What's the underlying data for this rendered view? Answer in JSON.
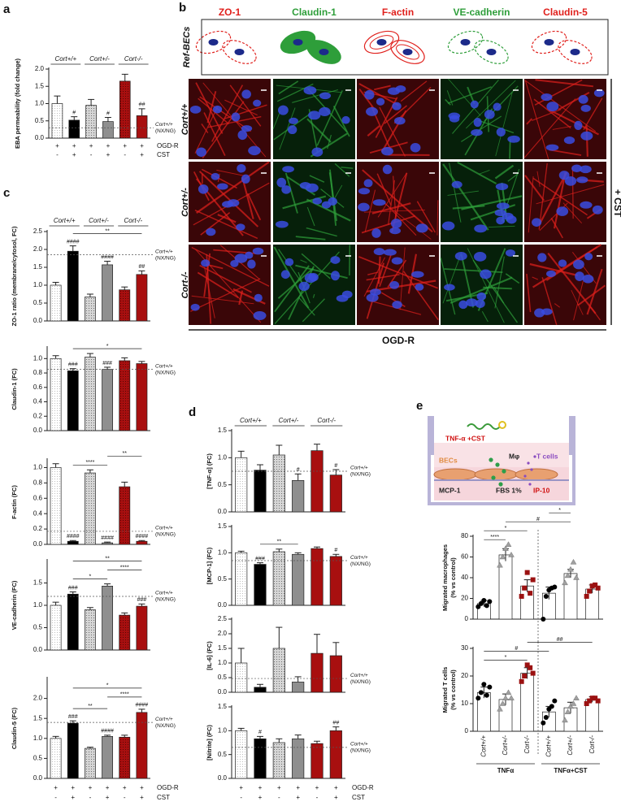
{
  "panel_labels": [
    "a",
    "b",
    "c",
    "d",
    "e"
  ],
  "micrographs": {
    "columns": [
      {
        "name": "ZO-1",
        "color": "#e0201c"
      },
      {
        "name": "Claudin-1",
        "color": "#2e9e3a"
      },
      {
        "name": "F-actin",
        "color": "#e0201c"
      },
      {
        "name": "VE-cadherin",
        "color": "#2e9e3a"
      },
      {
        "name": "Claudin-5",
        "color": "#e0201c"
      }
    ],
    "ref_row": "Ref-BECs",
    "rows": [
      "Cort+/+",
      "Cort+/-",
      "Cort-/-"
    ],
    "side_label": "+ CST",
    "bottom_label": "OGD-R"
  },
  "diagram": {
    "labels": [
      "TNF-α +CST",
      "BECs",
      "Mφ",
      "T cells",
      "MCP-1",
      "FBS 1%",
      "IP-10"
    ]
  },
  "chart_data": [
    {
      "type": "bar",
      "ylabel": "EBA permeability (fold change)",
      "values": [
        1.0,
        0.52,
        0.95,
        0.48,
        1.65,
        0.65
      ],
      "errors": [
        0.22,
        0.1,
        0.17,
        0.12,
        0.2,
        0.2
      ],
      "colors": [
        "#ffffff",
        "#000000",
        "#d6d6d6",
        "#8f8f8f",
        "#a80f0f",
        "#a80f0f"
      ],
      "dotted": [
        true,
        false,
        true,
        false,
        true,
        false
      ],
      "ylim": [
        0,
        2
      ],
      "yticks": [
        {
          "value": 0,
          "label": "0.0"
        },
        {
          "value": 0.5,
          "label": "0.5"
        },
        {
          "value": 1,
          "label": "1.0"
        },
        {
          "value": 1.5,
          "label": "1.5"
        },
        {
          "value": 2,
          "label": "2.0"
        }
      ],
      "ref": 0.3,
      "ref_label": [
        "Cort+/+",
        "(NX/NG)"
      ],
      "bar_labels": [
        null,
        "#",
        null,
        "#",
        null,
        "##"
      ],
      "brackets": [],
      "groups": [
        "Cort+/+",
        "Cort+/-",
        "Cort-/-"
      ],
      "row_labels": [
        "OGD-R",
        "CST"
      ],
      "rows": [
        [
          "+",
          "+",
          "+",
          "+",
          "+",
          "+"
        ],
        [
          "-",
          "+",
          "-",
          "+",
          "-",
          "+"
        ]
      ]
    },
    {
      "type": "bar",
      "ylabel": "ZO-1 ratio (membrane/cytosol, FC)",
      "values": [
        1.0,
        1.95,
        0.67,
        1.57,
        0.87,
        1.3
      ],
      "errors": [
        0.08,
        0.15,
        0.08,
        0.1,
        0.08,
        0.1
      ],
      "colors": [
        "#ffffff",
        "#000000",
        "#d6d6d6",
        "#8f8f8f",
        "#a80f0f",
        "#a80f0f"
      ],
      "dotted": [
        true,
        false,
        true,
        false,
        true,
        false
      ],
      "ylim": [
        0,
        2.5
      ],
      "yticks": [
        {
          "value": 0,
          "label": "0.0"
        },
        {
          "value": 0.5,
          "label": "0.5"
        },
        {
          "value": 1,
          "label": "1.0"
        },
        {
          "value": 1.5,
          "label": "1.5"
        },
        {
          "value": 2,
          "label": "2.0"
        },
        {
          "value": 2.5,
          "label": "2.5"
        }
      ],
      "ref": 1.85,
      "ref_label": [
        "Cort+/+",
        "(NX/NG)"
      ],
      "bar_labels": [
        null,
        "####",
        null,
        "####",
        null,
        "##"
      ],
      "brackets": [
        {
          "bars": [
            1,
            5
          ],
          "label": "**"
        }
      ],
      "groups": [
        "Cort+/+",
        "Cort+/-",
        "Cort-/-"
      ]
    },
    {
      "type": "bar",
      "ylabel": "Claudin-1 (FC)",
      "values": [
        1.0,
        0.83,
        1.02,
        0.85,
        0.97,
        0.93
      ],
      "errors": [
        0.04,
        0.03,
        0.05,
        0.03,
        0.04,
        0.03
      ],
      "colors": [
        "#ffffff",
        "#000000",
        "#d6d6d6",
        "#8f8f8f",
        "#a80f0f",
        "#a80f0f"
      ],
      "dotted": [
        true,
        false,
        true,
        false,
        true,
        false
      ],
      "ylim": [
        0,
        1.15
      ],
      "yticks": [
        {
          "value": 0,
          "label": "0.0"
        },
        {
          "value": 0.2,
          "label": "0.2"
        },
        {
          "value": 0.4,
          "label": "0.4"
        },
        {
          "value": 0.6,
          "label": "0.6"
        },
        {
          "value": 0.8,
          "label": "0.8"
        },
        {
          "value": 1,
          "label": "1.0"
        }
      ],
      "ref": 0.85,
      "ref_label": [
        "Cort+/+",
        "(NX/NG)"
      ],
      "bar_labels": [
        null,
        "###",
        null,
        "###",
        null,
        null
      ],
      "brackets": [
        {
          "bars": [
            1,
            5
          ],
          "label": "*"
        }
      ]
    },
    {
      "type": "bar",
      "ylabel": "F-actin (FC)",
      "values": [
        1.0,
        0.04,
        0.93,
        0.02,
        0.75,
        0.04
      ],
      "errors": [
        0.05,
        0.01,
        0.04,
        0.01,
        0.06,
        0.01
      ],
      "colors": [
        "#ffffff",
        "#000000",
        "#d6d6d6",
        "#8f8f8f",
        "#a80f0f",
        "#a80f0f"
      ],
      "dotted": [
        true,
        false,
        true,
        false,
        true,
        false
      ],
      "ylim": [
        0,
        1.1
      ],
      "yticks": [
        {
          "value": 0,
          "label": "0.0"
        },
        {
          "value": 0.2,
          "label": "0.2"
        },
        {
          "value": 0.4,
          "label": "0.4"
        },
        {
          "value": 0.6,
          "label": "0.6"
        },
        {
          "value": 0.8,
          "label": "0.8"
        },
        {
          "value": 1,
          "label": "1.0"
        }
      ],
      "ref": 0.17,
      "ref_label": [
        "Cort+/+",
        "(NX/NG)"
      ],
      "bar_labels": [
        null,
        "####",
        null,
        "####",
        null,
        "####"
      ],
      "brackets": [
        {
          "bars": [
            1,
            3
          ],
          "label": "****"
        },
        {
          "bars": [
            3,
            5
          ],
          "label": "**"
        }
      ]
    },
    {
      "type": "bar",
      "ylabel": "VE-cadherin (FC)",
      "values": [
        1.0,
        1.25,
        0.9,
        1.43,
        0.78,
        0.98
      ],
      "errors": [
        0.07,
        0.05,
        0.05,
        0.05,
        0.05,
        0.05
      ],
      "colors": [
        "#ffffff",
        "#000000",
        "#d6d6d6",
        "#8f8f8f",
        "#a80f0f",
        "#a80f0f"
      ],
      "dotted": [
        true,
        false,
        true,
        false,
        true,
        false
      ],
      "ylim": [
        0,
        2
      ],
      "yticks": [
        {
          "value": 0,
          "label": "0.0"
        },
        {
          "value": 0.5,
          "label": "0.5"
        },
        {
          "value": 1,
          "label": "1.0"
        },
        {
          "value": 1.5,
          "label": "1.5"
        }
      ],
      "ref": 1.2,
      "ref_label": [
        "Cort+/+",
        "(NX/NG)"
      ],
      "bar_labels": [
        null,
        "###",
        null,
        null,
        null,
        "###"
      ],
      "brackets": [
        {
          "bars": [
            1,
            3
          ],
          "label": "*"
        },
        {
          "bars": [
            3,
            5
          ],
          "label": "****"
        },
        {
          "bars": [
            1,
            5
          ],
          "label": "**"
        }
      ]
    },
    {
      "type": "bar",
      "ylabel": "Claudin-5 (FC)",
      "values": [
        1.0,
        1.38,
        0.75,
        1.05,
        1.03,
        1.65
      ],
      "errors": [
        0.05,
        0.06,
        0.03,
        0.03,
        0.05,
        0.08
      ],
      "colors": [
        "#ffffff",
        "#000000",
        "#d6d6d6",
        "#8f8f8f",
        "#a80f0f",
        "#a80f0f"
      ],
      "dotted": [
        true,
        false,
        true,
        false,
        true,
        false
      ],
      "ylim": [
        0,
        2.5
      ],
      "yticks": [
        {
          "value": 0,
          "label": "0.0"
        },
        {
          "value": 0.5,
          "label": "0.5"
        },
        {
          "value": 1,
          "label": "1.0"
        },
        {
          "value": 1.5,
          "label": "1.5"
        },
        {
          "value": 2,
          "label": "2.0"
        }
      ],
      "ref": 1.4,
      "ref_label": [
        "Cort+/+",
        "(NX/NG)"
      ],
      "bar_labels": [
        null,
        "###",
        null,
        "####",
        null,
        "####"
      ],
      "brackets": [
        {
          "bars": [
            1,
            3
          ],
          "label": "**"
        },
        {
          "bars": [
            3,
            5
          ],
          "label": "****"
        },
        {
          "bars": [
            1,
            5
          ],
          "label": "*"
        }
      ],
      "row_labels": [
        "OGD-R",
        "CST"
      ],
      "rows": [
        [
          "+",
          "+",
          "+",
          "+",
          "+",
          "+"
        ],
        [
          "-",
          "+",
          "-",
          "+",
          "-",
          "+"
        ]
      ]
    },
    {
      "type": "bar",
      "ylabel": "[TNF-α] (FC)",
      "values": [
        1.0,
        0.77,
        1.05,
        0.58,
        1.13,
        0.68
      ],
      "errors": [
        0.12,
        0.1,
        0.18,
        0.12,
        0.12,
        0.1
      ],
      "colors": [
        "#ffffff",
        "#000000",
        "#d6d6d6",
        "#8f8f8f",
        "#a80f0f",
        "#a80f0f"
      ],
      "dotted": [
        true,
        false,
        true,
        false,
        false,
        false
      ],
      "ylim": [
        0,
        1.5
      ],
      "yticks": [
        {
          "value": 0,
          "label": "0.0"
        },
        {
          "value": 0.5,
          "label": "0.5"
        },
        {
          "value": 1,
          "label": "1.0"
        },
        {
          "value": 1.5,
          "label": "1.5"
        }
      ],
      "ref": 0.75,
      "ref_label": [
        "Cort+/+",
        "(NX/NG)"
      ],
      "bar_labels": [
        null,
        null,
        null,
        "#",
        null,
        "#"
      ],
      "brackets": [],
      "groups": [
        "Cort+/+",
        "Cort+/-",
        "Cort-/-"
      ]
    },
    {
      "type": "bar",
      "ylabel": "[MCP-1] (FC)",
      "values": [
        1.0,
        0.78,
        1.02,
        0.97,
        1.08,
        0.93
      ],
      "errors": [
        0.03,
        0.03,
        0.05,
        0.03,
        0.03,
        0.04
      ],
      "colors": [
        "#ffffff",
        "#000000",
        "#d6d6d6",
        "#8f8f8f",
        "#a80f0f",
        "#a80f0f"
      ],
      "dotted": [
        true,
        false,
        true,
        false,
        false,
        false
      ],
      "ylim": [
        0,
        1.5
      ],
      "yticks": [
        {
          "value": 0,
          "label": "0.0"
        },
        {
          "value": 0.5,
          "label": "0.5"
        },
        {
          "value": 1,
          "label": "1.0"
        },
        {
          "value": 1.5,
          "label": "1.5"
        }
      ],
      "ref": 0.85,
      "ref_label": [
        "Cort+/+",
        "(NX/NG)"
      ],
      "bar_labels": [
        null,
        "###",
        null,
        null,
        null,
        "#"
      ],
      "brackets": [
        {
          "bars": [
            1,
            3
          ],
          "label": "**"
        }
      ]
    },
    {
      "type": "bar",
      "ylabel": "[IL-6] (FC)",
      "values": [
        1.0,
        0.17,
        1.5,
        0.35,
        1.33,
        1.25
      ],
      "errors": [
        0.5,
        0.1,
        0.72,
        0.18,
        0.65,
        0.45
      ],
      "colors": [
        "#ffffff",
        "#000000",
        "#d6d6d6",
        "#8f8f8f",
        "#a80f0f",
        "#a80f0f"
      ],
      "dotted": [
        true,
        false,
        true,
        false,
        false,
        false
      ],
      "ylim": [
        0,
        2.5
      ],
      "yticks": [
        {
          "value": 0,
          "label": "0.0"
        },
        {
          "value": 0.5,
          "label": "0.5"
        },
        {
          "value": 1,
          "label": "1.0"
        },
        {
          "value": 1.5,
          "label": "1.5"
        },
        {
          "value": 2,
          "label": "2.0"
        },
        {
          "value": 2.5,
          "label": "2.5"
        }
      ],
      "ref": 0.47,
      "ref_label": [
        "Cort+/+",
        "(NX/NG)"
      ],
      "bar_labels": [
        null,
        null,
        null,
        null,
        null,
        null
      ],
      "brackets": []
    },
    {
      "type": "bar",
      "ylabel": "[Nitrite] (FC)",
      "values": [
        1.0,
        0.83,
        0.75,
        0.83,
        0.73,
        1.0
      ],
      "errors": [
        0.05,
        0.05,
        0.08,
        0.08,
        0.05,
        0.08
      ],
      "colors": [
        "#ffffff",
        "#000000",
        "#d6d6d6",
        "#8f8f8f",
        "#a80f0f",
        "#a80f0f"
      ],
      "dotted": [
        true,
        false,
        true,
        false,
        false,
        false
      ],
      "ylim": [
        0,
        1.5
      ],
      "yticks": [
        {
          "value": 0,
          "label": "0.0"
        },
        {
          "value": 0.5,
          "label": "0.5"
        },
        {
          "value": 1,
          "label": "1.0"
        },
        {
          "value": 1.5,
          "label": "1.5"
        }
      ],
      "ref": 0.65,
      "ref_label": [
        "Cort+/+",
        "(NX/NG)"
      ],
      "bar_labels": [
        null,
        "#",
        null,
        null,
        null,
        "##"
      ],
      "brackets": [],
      "row_labels": [
        "OGD-R",
        "CST"
      ],
      "rows": [
        [
          "+",
          "+",
          "+",
          "+",
          "+",
          "+"
        ],
        [
          "-",
          "+",
          "-",
          "+",
          "-",
          "+"
        ]
      ]
    },
    {
      "type": "dotbar",
      "ylabel": [
        "Migrated macrophages",
        "(% vs control)"
      ],
      "values": [
        15,
        62,
        32,
        25,
        44,
        29
      ],
      "errors": [
        3,
        6,
        6,
        6,
        4,
        4
      ],
      "points": [
        [
          12,
          15,
          18,
          13,
          17
        ],
        [
          52,
          60,
          68,
          72,
          62
        ],
        [
          22,
          30,
          45,
          25,
          38
        ],
        [
          0,
          22,
          28,
          30,
          31
        ],
        [
          35,
          42,
          48,
          55,
          40
        ],
        [
          22,
          27,
          32,
          33,
          30
        ]
      ],
      "markers": [
        "circle",
        "triangle",
        "square",
        "circle",
        "triangle",
        "square"
      ],
      "marker_colors": [
        "#000000",
        "#a0a0a0",
        "#9b1111",
        "#000000",
        "#a0a0a0",
        "#9b1111"
      ],
      "ylim": [
        0,
        80
      ],
      "yticks": [
        0,
        20,
        40,
        60,
        80
      ],
      "brackets": [
        {
          "bars": [
            0,
            1
          ],
          "label": "****"
        },
        {
          "bars": [
            0,
            2
          ],
          "label": "*"
        },
        {
          "bars": [
            1,
            4
          ],
          "label": "#"
        },
        {
          "bars": [
            3,
            4
          ],
          "label": "*"
        }
      ]
    },
    {
      "type": "dotbar",
      "ylabel": [
        "Migrated T cells",
        "(% vs control)"
      ],
      "values": [
        14,
        11.5,
        21,
        7,
        8.5,
        11.5
      ],
      "errors": [
        2,
        2,
        2,
        2,
        2,
        1
      ],
      "points": [
        [
          12,
          14,
          17,
          13,
          16
        ],
        [
          8,
          10,
          12,
          14,
          12
        ],
        [
          18,
          20,
          24,
          23,
          21
        ],
        [
          3,
          5,
          8,
          9,
          11
        ],
        [
          4,
          7,
          9,
          10,
          12
        ],
        [
          10,
          11,
          12,
          12,
          11
        ]
      ],
      "markers": [
        "circle",
        "triangle",
        "square",
        "circle",
        "triangle",
        "square"
      ],
      "marker_colors": [
        "#000000",
        "#a0a0a0",
        "#9b1111",
        "#000000",
        "#a0a0a0",
        "#9b1111"
      ],
      "ylim": [
        0,
        30
      ],
      "yticks": [
        0,
        10,
        20,
        30
      ],
      "brackets": [
        {
          "bars": [
            0,
            2
          ],
          "label": "*"
        },
        {
          "bars": [
            0,
            3
          ],
          "label": "#"
        },
        {
          "bars": [
            2,
            5
          ],
          "label": "##"
        }
      ],
      "categories": [
        "Cort+/+",
        "Cort+/-",
        "Cort-/-",
        "Cort+/+",
        "Cort+/-",
        "Cort-/-"
      ],
      "groups": [
        "TNFα",
        "TNFα+CST"
      ]
    }
  ]
}
